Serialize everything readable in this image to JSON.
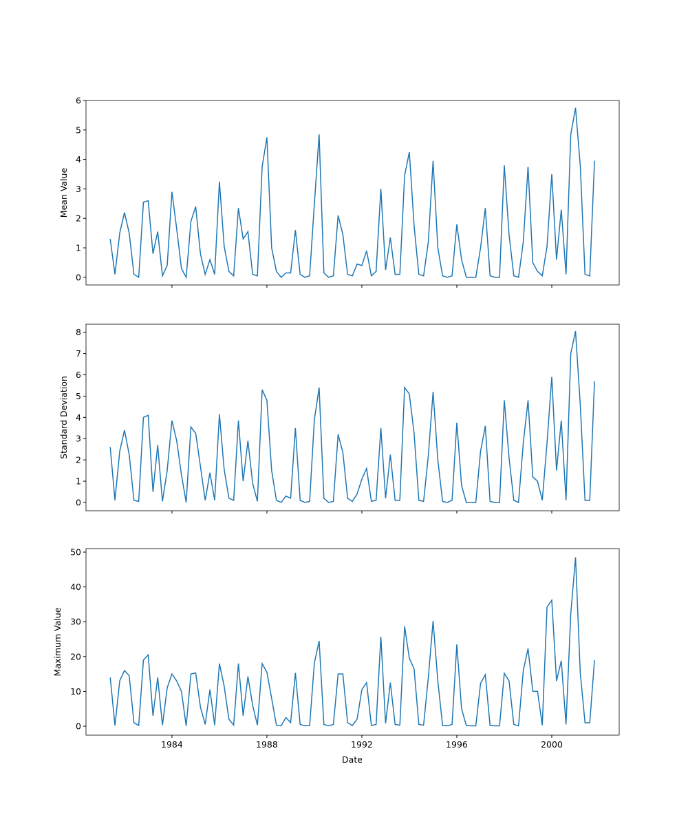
{
  "chart_data": {
    "type": "line",
    "xlabel": "Date",
    "color": "#1f77b4",
    "xlim": [
      1980.38,
      2002.84
    ],
    "xticks": [
      1984,
      1988,
      1992,
      1996,
      2000
    ],
    "x": [
      1981.4,
      1981.6,
      1981.8,
      1982.0,
      1982.2,
      1982.4,
      1982.6,
      1982.8,
      1983.0,
      1983.2,
      1983.4,
      1983.6,
      1983.8,
      1984.0,
      1984.2,
      1984.4,
      1984.6,
      1984.8,
      1985.0,
      1985.2,
      1985.4,
      1985.6,
      1985.8,
      1986.0,
      1986.2,
      1986.4,
      1986.6,
      1986.8,
      1987.0,
      1987.2,
      1987.4,
      1987.6,
      1987.8,
      1988.0,
      1988.2,
      1988.4,
      1988.6,
      1988.8,
      1989.0,
      1989.2,
      1989.4,
      1989.6,
      1989.8,
      1990.0,
      1990.2,
      1990.4,
      1990.6,
      1990.8,
      1991.0,
      1991.2,
      1991.4,
      1991.6,
      1991.8,
      1992.0,
      1992.2,
      1992.4,
      1992.6,
      1992.8,
      1993.0,
      1993.2,
      1993.4,
      1993.6,
      1993.8,
      1994.0,
      1994.2,
      1994.4,
      1994.6,
      1994.8,
      1995.0,
      1995.2,
      1995.4,
      1995.6,
      1995.8,
      1996.0,
      1996.2,
      1996.4,
      1996.6,
      1996.8,
      1997.0,
      1997.2,
      1997.4,
      1997.6,
      1997.8,
      1998.0,
      1998.2,
      1998.4,
      1998.6,
      1998.8,
      1999.0,
      1999.2,
      1999.4,
      1999.6,
      1999.8,
      2000.0,
      2000.2,
      2000.4,
      2000.6,
      2000.8,
      2001.0,
      2001.2,
      2001.4,
      2001.6,
      2001.8
    ],
    "panels": [
      {
        "ylabel": "Mean Value",
        "ylim": [
          -0.26,
          6.0
        ],
        "yticks": [
          0,
          1,
          2,
          3,
          4,
          5,
          6
        ],
        "values": [
          1.3,
          0.1,
          1.5,
          2.2,
          1.5,
          0.1,
          0.0,
          2.55,
          2.6,
          0.8,
          1.55,
          0.05,
          0.4,
          2.9,
          1.65,
          0.3,
          0.0,
          1.9,
          2.4,
          0.8,
          0.1,
          0.6,
          0.1,
          3.25,
          1.05,
          0.2,
          0.05,
          2.35,
          1.3,
          1.55,
          0.1,
          0.05,
          3.75,
          4.75,
          1.0,
          0.2,
          0.0,
          0.15,
          0.15,
          1.6,
          0.1,
          0.0,
          0.05,
          2.5,
          4.85,
          0.15,
          0.0,
          0.05,
          2.1,
          1.45,
          0.1,
          0.05,
          0.45,
          0.4,
          0.9,
          0.05,
          0.2,
          3.0,
          0.25,
          1.35,
          0.1,
          0.1,
          3.45,
          4.25,
          1.75,
          0.1,
          0.05,
          1.2,
          3.95,
          1.0,
          0.05,
          0.0,
          0.05,
          1.8,
          0.6,
          0.0,
          0.0,
          0.0,
          1.0,
          2.35,
          0.05,
          0.0,
          0.0,
          3.8,
          1.45,
          0.05,
          0.0,
          1.2,
          3.75,
          0.5,
          0.2,
          0.05,
          1.05,
          3.5,
          0.6,
          2.3,
          0.1,
          4.85,
          5.75,
          3.8,
          0.1,
          0.05,
          3.95
        ]
      },
      {
        "ylabel": "Standard Deviation",
        "ylim": [
          -0.39,
          8.38
        ],
        "yticks": [
          0,
          1,
          2,
          3,
          4,
          5,
          6,
          7,
          8
        ],
        "values": [
          2.6,
          0.1,
          2.4,
          3.4,
          2.25,
          0.1,
          0.05,
          4.0,
          4.1,
          0.5,
          2.7,
          0.05,
          1.5,
          3.85,
          2.9,
          1.3,
          0.0,
          3.55,
          3.25,
          1.7,
          0.1,
          1.4,
          0.1,
          4.15,
          1.55,
          0.2,
          0.1,
          3.85,
          1.0,
          2.9,
          0.9,
          0.05,
          5.3,
          4.8,
          1.5,
          0.1,
          0.0,
          0.3,
          0.2,
          3.5,
          0.1,
          0.0,
          0.05,
          3.9,
          5.4,
          0.2,
          0.0,
          0.05,
          3.2,
          2.35,
          0.2,
          0.05,
          0.4,
          1.1,
          1.6,
          0.05,
          0.1,
          3.5,
          0.2,
          2.25,
          0.1,
          0.1,
          5.4,
          5.1,
          3.25,
          0.1,
          0.05,
          2.2,
          5.2,
          2.0,
          0.05,
          0.0,
          0.1,
          3.75,
          0.8,
          0.0,
          0.0,
          0.0,
          2.4,
          3.6,
          0.05,
          0.0,
          0.0,
          4.8,
          2.1,
          0.1,
          0.0,
          2.8,
          4.8,
          1.2,
          1.0,
          0.1,
          2.8,
          5.9,
          1.5,
          3.85,
          0.1,
          7.0,
          8.05,
          4.6,
          0.1,
          0.1,
          5.7
        ]
      },
      {
        "ylabel": "Maximum Value",
        "ylim": [
          -2.57,
          51
        ],
        "yticks": [
          0,
          10,
          20,
          30,
          40,
          50
        ],
        "values": [
          14,
          0.2,
          13,
          16,
          14.5,
          1,
          0.2,
          19,
          20.5,
          3,
          14,
          0.3,
          11,
          15,
          13,
          10,
          0.1,
          15,
          15.3,
          5.5,
          0.5,
          10.5,
          0.3,
          18,
          11.5,
          2,
          0.3,
          18,
          3,
          14.3,
          6,
          0.3,
          18,
          15.5,
          8,
          0.3,
          0.1,
          2.5,
          1,
          15.3,
          0.5,
          0.1,
          0.2,
          18.2,
          24.5,
          0.5,
          0.1,
          0.5,
          15,
          15,
          1,
          0.2,
          2,
          10.5,
          12.5,
          0.2,
          0.5,
          25.7,
          0.8,
          12.5,
          0.5,
          0.3,
          28.7,
          19.5,
          16.5,
          0.5,
          0.3,
          14,
          30.2,
          13,
          0.2,
          0.1,
          0.5,
          23.5,
          5,
          0.2,
          0.1,
          0.1,
          12.3,
          14.8,
          0.2,
          0.1,
          0.1,
          15.2,
          13,
          0.5,
          0.1,
          16,
          22.3,
          10,
          10,
          0.3,
          34.2,
          36.2,
          13,
          18.8,
          0.5,
          32.3,
          48.5,
          15.3,
          1,
          1,
          19
        ]
      }
    ]
  }
}
